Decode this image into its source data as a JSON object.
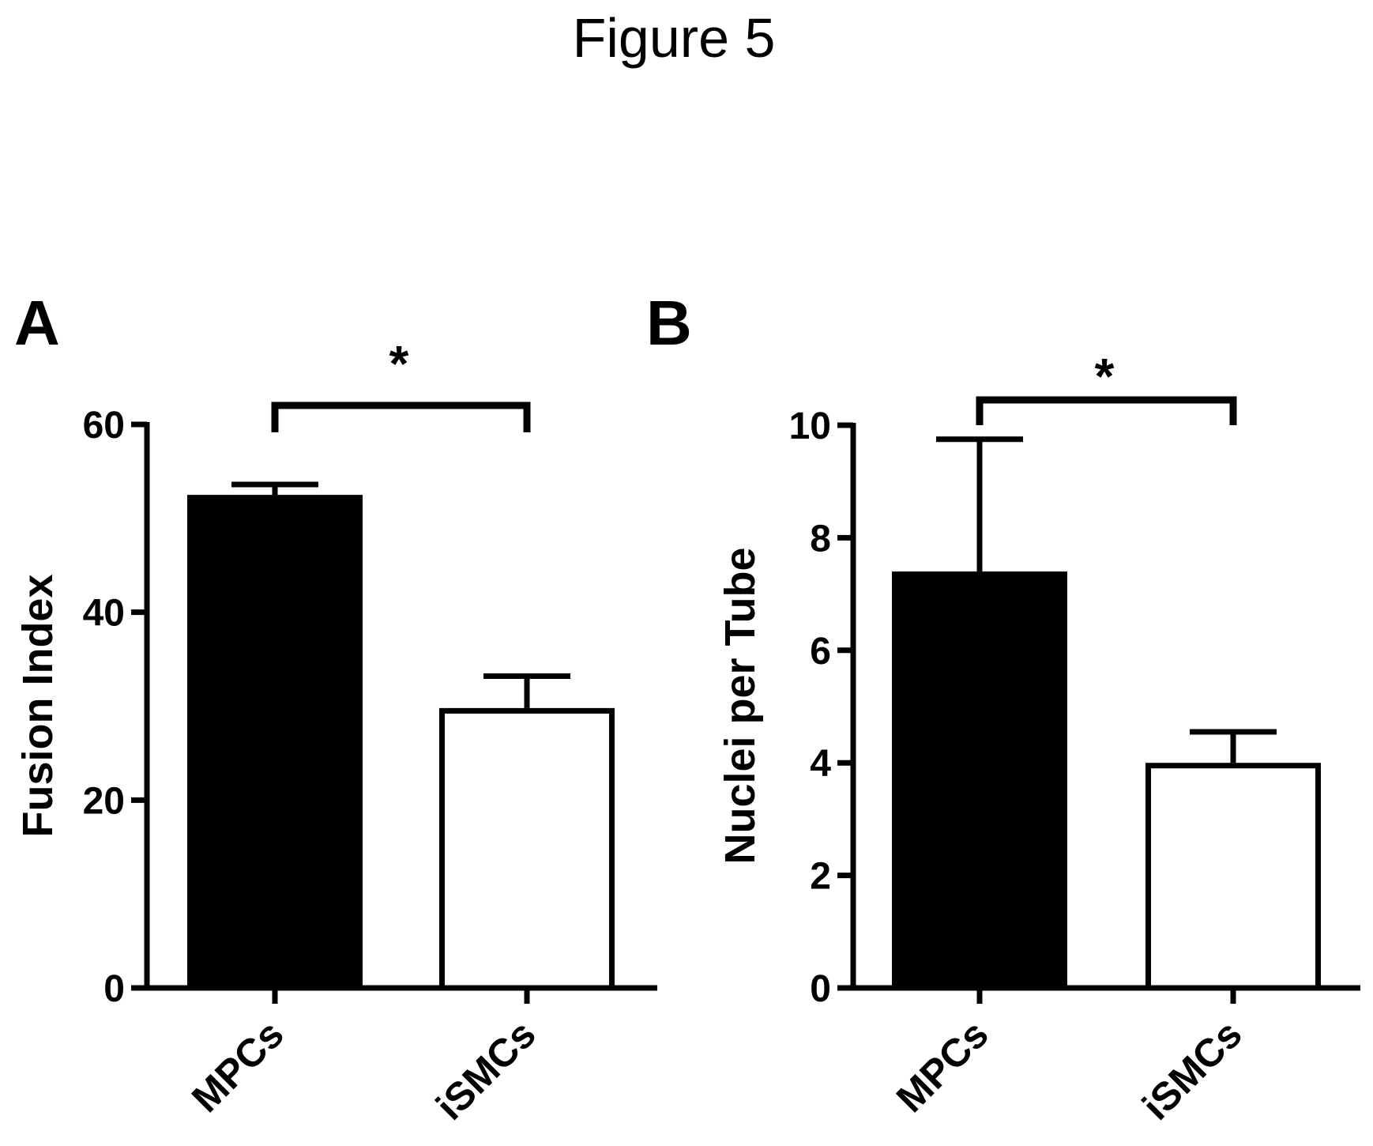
{
  "figure_title": "Figure 5",
  "chart_data": [
    {
      "type": "bar",
      "panel_label": "A",
      "categories": [
        "MPCs",
        "iSMCs"
      ],
      "values": [
        52.5,
        29.8
      ],
      "error_upper": [
        53.6,
        33.2
      ],
      "bar_fill": [
        "#000000",
        "#ffffff"
      ],
      "ylabel": "Fusion Index",
      "xlabel": "",
      "ylim": [
        0,
        60
      ],
      "yticks": [
        "0",
        "20",
        "40",
        "60"
      ],
      "significance": "*",
      "grid": false
    },
    {
      "type": "bar",
      "panel_label": "B",
      "categories": [
        "MPCs",
        "iSMCs"
      ],
      "values": [
        7.4,
        4.0
      ],
      "error_upper": [
        9.75,
        4.55
      ],
      "bar_fill": [
        "#000000",
        "#ffffff"
      ],
      "ylabel": "Nuclei per Tube",
      "xlabel": "",
      "ylim": [
        0,
        10
      ],
      "yticks": [
        "0",
        "2",
        "4",
        "6",
        "8",
        "10"
      ],
      "significance": "*",
      "grid": false
    }
  ]
}
